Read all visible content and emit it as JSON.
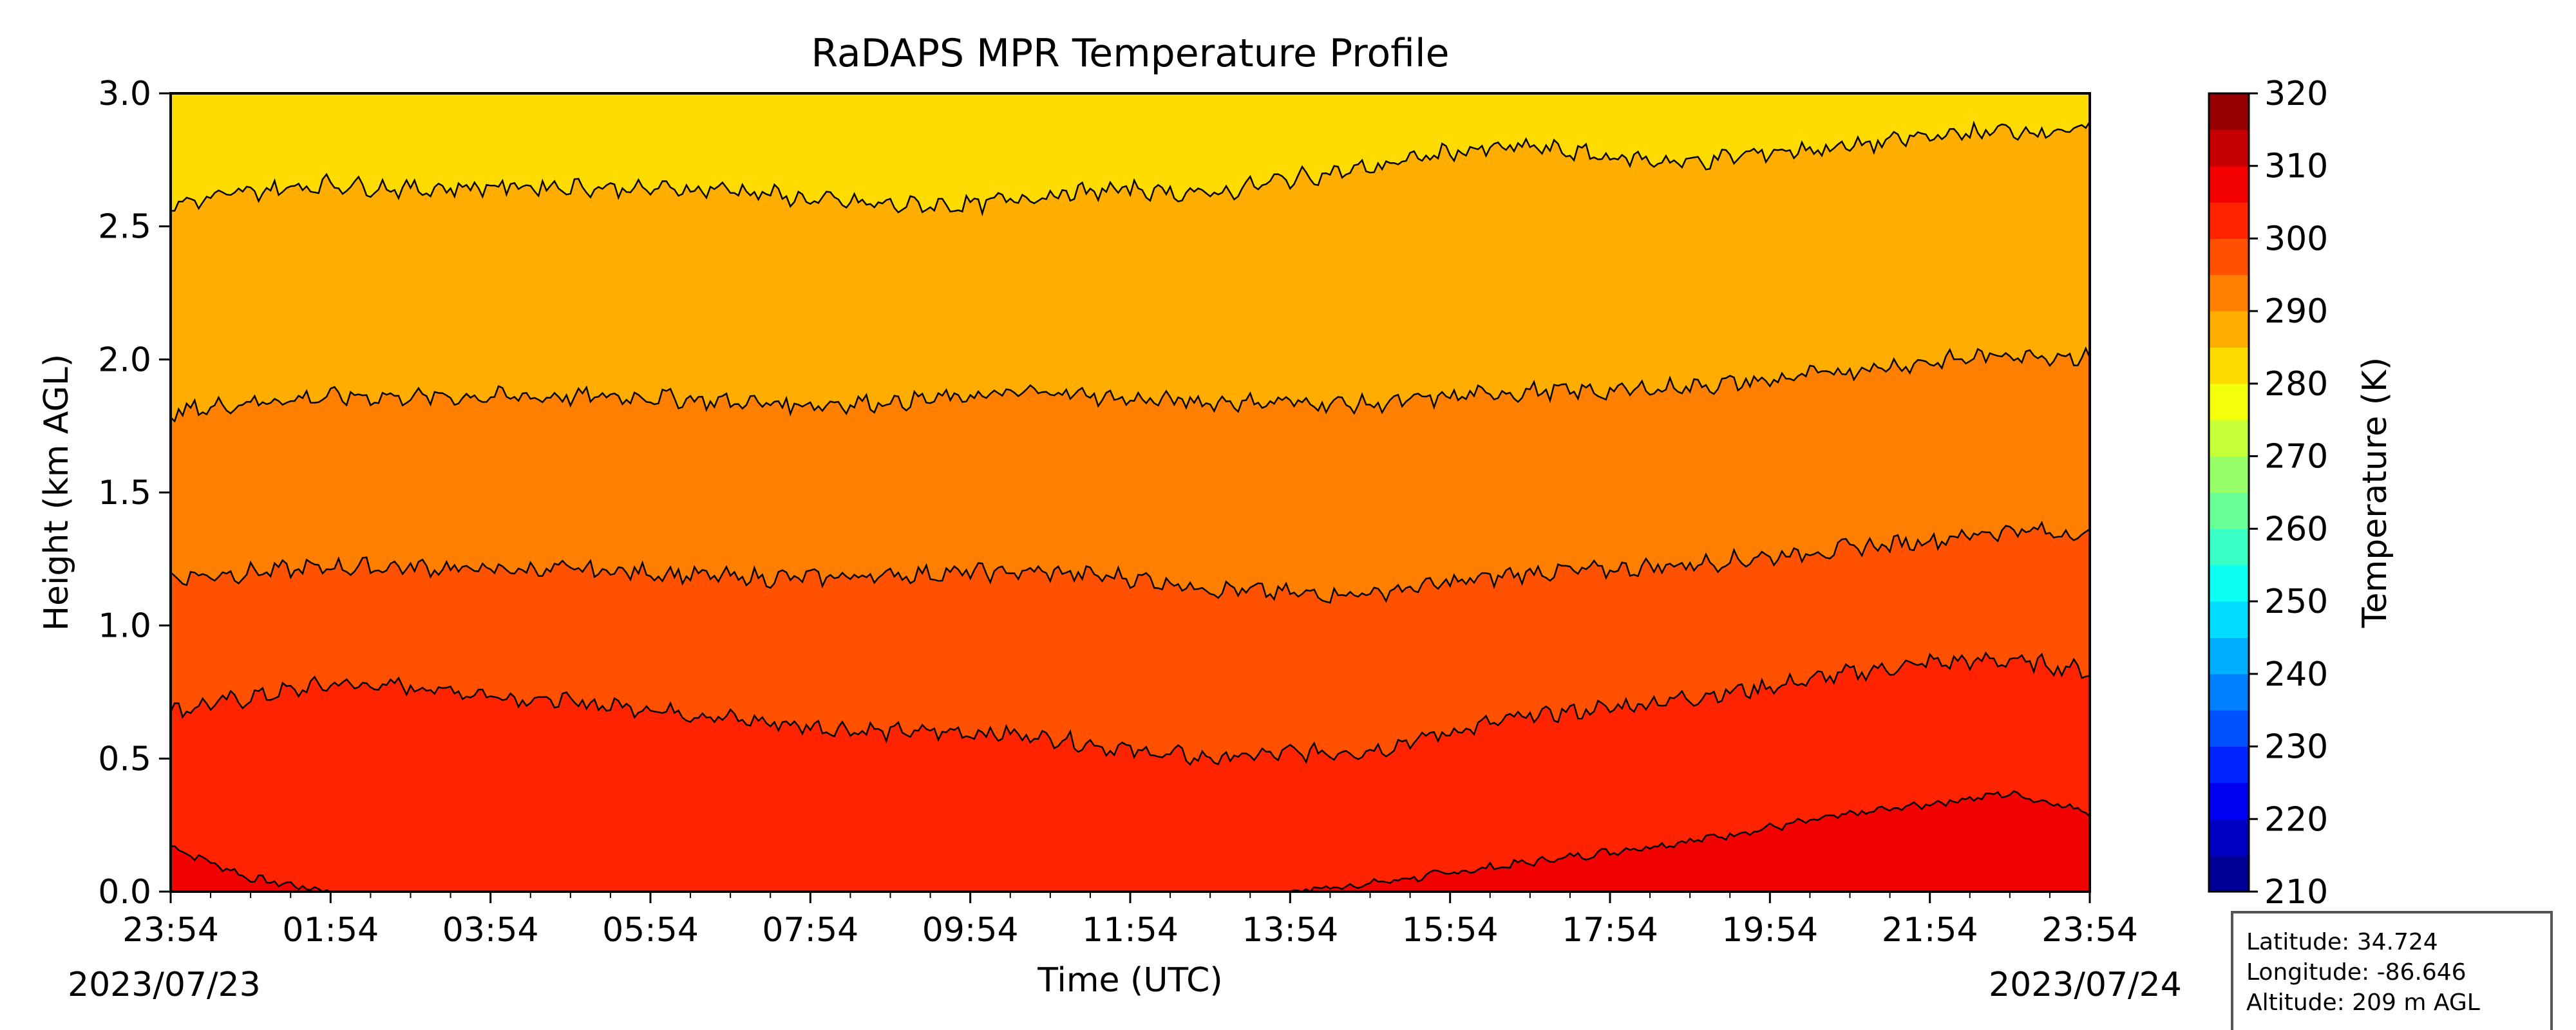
{
  "chart_data": {
    "type": "heatmap",
    "title": "RaDAPS MPR Temperature Profile",
    "xlabel": "Time (UTC)",
    "ylabel": "Height (km AGL)",
    "x_tick_labels": [
      "23:54",
      "01:54",
      "03:54",
      "05:54",
      "07:54",
      "09:54",
      "11:54",
      "13:54",
      "15:54",
      "17:54",
      "19:54",
      "21:54",
      "23:54"
    ],
    "x_hours": [
      0,
      2,
      4,
      6,
      8,
      10,
      12,
      14,
      16,
      18,
      20,
      22,
      24
    ],
    "xlim_hours": [
      0,
      24
    ],
    "date_labels": {
      "start": "2023/07/23",
      "end": "2023/07/24"
    },
    "y_ticks": [
      0.0,
      0.5,
      1.0,
      1.5,
      2.0,
      2.5,
      3.0
    ],
    "y_tick_labels": [
      "0.0",
      "0.5",
      "1.0",
      "1.5",
      "2.0",
      "2.5",
      "3.0"
    ],
    "ylim": [
      0,
      3.0
    ],
    "colorbar": {
      "label": "Temperature (K)",
      "ticks": [
        210,
        220,
        230,
        240,
        250,
        260,
        270,
        280,
        290,
        300,
        310,
        320
      ],
      "tick_labels": [
        "210",
        "220",
        "230",
        "240",
        "250",
        "260",
        "270",
        "280",
        "290",
        "300",
        "310",
        "320"
      ],
      "range": [
        210,
        320
      ],
      "colormap": "jet",
      "levels": 22
    },
    "contour_levels_K": [
      305,
      300,
      295,
      290,
      285,
      280
    ],
    "contour_hours": [
      0,
      1,
      2,
      3,
      4,
      5,
      6,
      7,
      8,
      9,
      10,
      11,
      12,
      13,
      14,
      15,
      16,
      17,
      18,
      19,
      20,
      21,
      22,
      23,
      24
    ],
    "contours": [
      {
        "level": 305,
        "heights_km": [
          0.17,
          0.05,
          0,
          0,
          0,
          0,
          0,
          0,
          0,
          0,
          0,
          0,
          0,
          0,
          0,
          0.03,
          0.07,
          0.11,
          0.15,
          0.19,
          0.24,
          0.29,
          0.33,
          0.37,
          0.3
        ]
      },
      {
        "level": 300,
        "heights_km": [
          0.68,
          0.73,
          0.78,
          0.77,
          0.74,
          0.71,
          0.69,
          0.65,
          0.62,
          0.6,
          0.6,
          0.58,
          0.53,
          0.5,
          0.52,
          0.53,
          0.6,
          0.66,
          0.69,
          0.73,
          0.77,
          0.82,
          0.86,
          0.87,
          0.83
        ]
      },
      {
        "level": 295,
        "heights_km": [
          1.18,
          1.2,
          1.22,
          1.22,
          1.21,
          1.21,
          1.2,
          1.18,
          1.18,
          1.19,
          1.2,
          1.2,
          1.18,
          1.14,
          1.12,
          1.12,
          1.16,
          1.2,
          1.21,
          1.23,
          1.26,
          1.29,
          1.32,
          1.36,
          1.34
        ]
      },
      {
        "level": 290,
        "heights_km": [
          1.8,
          1.84,
          1.86,
          1.86,
          1.86,
          1.86,
          1.86,
          1.84,
          1.83,
          1.84,
          1.86,
          1.88,
          1.85,
          1.84,
          1.84,
          1.83,
          1.86,
          1.88,
          1.88,
          1.9,
          1.92,
          1.96,
          1.99,
          2.02,
          2.01
        ]
      },
      {
        "level": 285,
        "heights_km": [
          2.58,
          2.63,
          2.66,
          2.64,
          2.65,
          2.65,
          2.64,
          2.64,
          2.6,
          2.58,
          2.58,
          2.62,
          2.64,
          2.62,
          2.68,
          2.72,
          2.78,
          2.8,
          2.76,
          2.74,
          2.78,
          2.8,
          2.84,
          2.86,
          2.86
        ]
      }
    ],
    "info_box": {
      "latitude": "Latitude: 34.724",
      "longitude": "Longitude: -86.646",
      "altitude": "Altitude: 209 m AGL"
    }
  }
}
